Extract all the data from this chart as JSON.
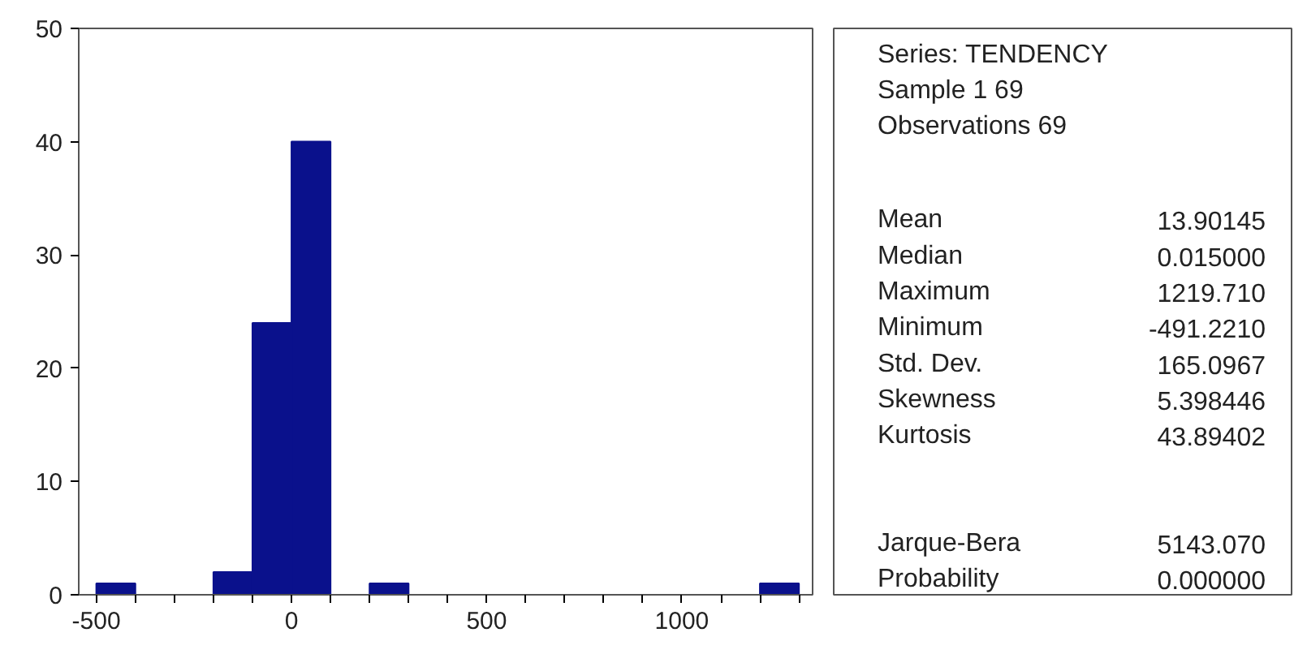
{
  "chart_data": [
    {
      "type": "histogram",
      "bins": [
        -500,
        -400,
        -300,
        -200,
        -100,
        0,
        100,
        200,
        300,
        400,
        500,
        600,
        700,
        800,
        900,
        1000,
        1100,
        1200,
        1300
      ],
      "values": [
        1,
        0,
        0,
        2,
        24,
        40,
        0,
        1,
        0,
        0,
        0,
        0,
        0,
        0,
        0,
        0,
        0,
        1
      ],
      "color": "#0a118c",
      "xlim": [
        -545,
        1335
      ],
      "xticks": [
        -500,
        {
          "value": -400,
          "label": null
        },
        {
          "value": -300,
          "label": null
        },
        {
          "value": -200,
          "label": null
        },
        {
          "value": -100,
          "label": null
        },
        0,
        {
          "value": 100,
          "label": null
        },
        {
          "value": 200,
          "label": null
        },
        {
          "value": 300,
          "label": null
        },
        {
          "value": 400,
          "label": null
        },
        500,
        {
          "value": 600,
          "label": null
        },
        {
          "value": 700,
          "label": null
        },
        {
          "value": 800,
          "label": null
        },
        {
          "value": 900,
          "label": null
        },
        1000,
        {
          "value": 1100,
          "label": null
        },
        {
          "value": 1200,
          "label": null
        },
        {
          "value": 1300,
          "label": null
        }
      ],
      "ylim": [
        0,
        50
      ],
      "yticks": [
        0,
        10,
        20,
        30,
        40,
        50
      ],
      "grid": false
    },
    {
      "type": "other",
      "title": "Series: TENDENCY",
      "annotations": [
        "Sample 1 69",
        "Observations 69"
      ],
      "categories": [
        "Mean",
        "Median",
        "Maximum",
        "Minimum",
        "Std. Dev.",
        "Skewness",
        "Kurtosis",
        null,
        "Jarque-Bera",
        "Probability"
      ],
      "values": [
        13.90145,
        0.015,
        1219.71,
        -491.221,
        165.0967,
        5.398446,
        43.89402,
        null,
        5143.07,
        0.0
      ],
      "value_labels": [
        "13.90145",
        "0.015000",
        "1219.710",
        "-491.2210",
        "165.0967",
        "5.398446",
        "43.89402",
        null,
        "5143.070",
        "0.000000"
      ]
    }
  ]
}
